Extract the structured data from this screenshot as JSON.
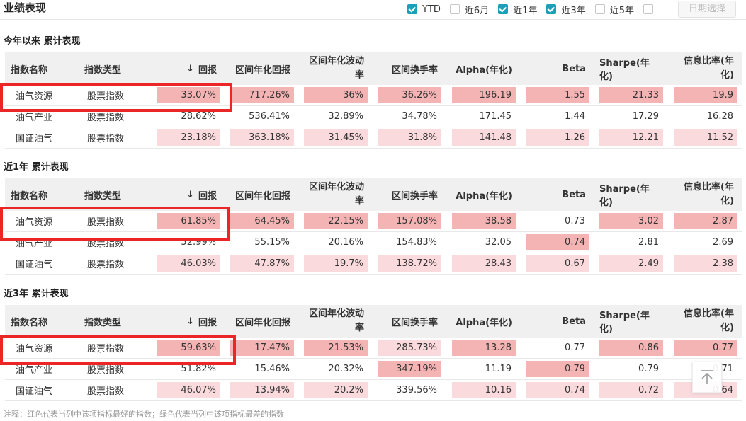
{
  "title": "业绩表现",
  "filters": [
    {
      "label": "YTD",
      "checked": true
    },
    {
      "label": "近6月",
      "checked": false
    },
    {
      "label": "近1年",
      "checked": true
    },
    {
      "label": "近3年",
      "checked": true
    },
    {
      "label": "近5年",
      "checked": false
    },
    {
      "label": "",
      "checked": false
    }
  ],
  "date_button": "日期选择",
  "columns": {
    "name": "指数名称",
    "type": "指数类型",
    "return_arrow": "↓",
    "return": "回报",
    "ann_return": "区间年化回报",
    "vol_line1": "区间年化波动",
    "vol_line2": "率",
    "turnover": "区间换手率",
    "alpha": "Alpha(年化)",
    "beta": "Beta",
    "sharpe": "Sharpe(年化)",
    "ir_line1": "信息比率(年",
    "ir_line2": "化)"
  },
  "colors": {
    "strong": "#f4b4b4",
    "light": "#fadadd",
    "outline": "#ec2626",
    "checkbox": "#1aa1b9"
  },
  "sections": [
    {
      "title": "今年以来 累计表现",
      "rows": [
        {
          "name": "油气资源",
          "type": "股票指数",
          "values": [
            "33.07%",
            "717.26%",
            "36%",
            "36.26%",
            "196.19",
            "1.55",
            "21.33",
            "19.9"
          ],
          "shade": [
            "strong",
            "strong",
            "strong",
            "strong",
            "strong",
            "strong",
            "strong",
            "strong"
          ]
        },
        {
          "name": "油气产业",
          "type": "股票指数",
          "values": [
            "28.62%",
            "536.41%",
            "32.89%",
            "34.78%",
            "171.45",
            "1.44",
            "17.29",
            "16.28"
          ],
          "shade": [
            "none",
            "none",
            "none",
            "none",
            "none",
            "none",
            "none",
            "none"
          ]
        },
        {
          "name": "国证油气",
          "type": "股票指数",
          "values": [
            "23.18%",
            "363.18%",
            "31.45%",
            "31.8%",
            "141.48",
            "1.26",
            "12.21",
            "11.52"
          ],
          "shade": [
            "light",
            "light",
            "light",
            "light",
            "light",
            "light",
            "light",
            "light"
          ]
        }
      ]
    },
    {
      "title": "近1年 累计表现",
      "rows": [
        {
          "name": "油气资源",
          "type": "股票指数",
          "values": [
            "61.85%",
            "64.45%",
            "22.15%",
            "157.08%",
            "38.58",
            "0.73",
            "3.02",
            "2.87"
          ],
          "shade": [
            "strong",
            "strong",
            "strong",
            "strong",
            "strong",
            "none",
            "strong",
            "strong"
          ]
        },
        {
          "name": "油气产业",
          "type": "股票指数",
          "values": [
            "52.99%",
            "55.15%",
            "20.16%",
            "154.83%",
            "32.05",
            "0.74",
            "2.81",
            "2.69"
          ],
          "shade": [
            "none",
            "none",
            "none",
            "none",
            "none",
            "strong",
            "none",
            "none"
          ]
        },
        {
          "name": "国证油气",
          "type": "股票指数",
          "values": [
            "46.03%",
            "47.87%",
            "19.7%",
            "138.72%",
            "28.43",
            "0.67",
            "2.49",
            "2.38"
          ],
          "shade": [
            "light",
            "light",
            "light",
            "light",
            "light",
            "light",
            "light",
            "light"
          ]
        }
      ]
    },
    {
      "title": "近3年 累计表现",
      "rows": [
        {
          "name": "油气资源",
          "type": "股票指数",
          "values": [
            "59.63%",
            "17.47%",
            "21.53%",
            "285.73%",
            "13.28",
            "0.77",
            "0.86",
            "0.77"
          ],
          "shade": [
            "strong",
            "strong",
            "strong",
            "light",
            "strong",
            "none",
            "strong",
            "strong"
          ]
        },
        {
          "name": "油气产业",
          "type": "股票指数",
          "values": [
            "51.82%",
            "15.46%",
            "20.32%",
            "347.19%",
            "11.19",
            "0.79",
            "0.79",
            "0.71"
          ],
          "shade": [
            "none",
            "none",
            "none",
            "strong",
            "none",
            "strong",
            "none",
            "none"
          ]
        },
        {
          "name": "国证油气",
          "type": "股票指数",
          "values": [
            "46.07%",
            "13.94%",
            "20.2%",
            "339.56%",
            "10.16",
            "0.74",
            "0.72",
            "0.64"
          ],
          "shade": [
            "light",
            "light",
            "light",
            "none",
            "light",
            "light",
            "light",
            "light"
          ]
        }
      ]
    }
  ],
  "note": "注释：红色代表当列中该项指标最好的指数；绿色代表当列中该项指标最差的指数"
}
